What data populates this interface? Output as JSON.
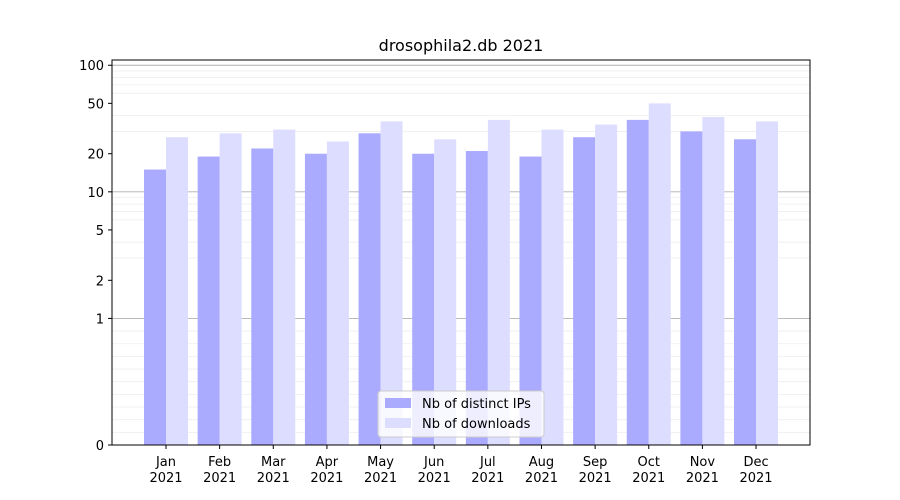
{
  "chart_data": {
    "type": "bar",
    "title": "drosophila2.db 2021",
    "xlabel": "",
    "ylabel": "",
    "y_scale": "symlog",
    "ylim": [
      0,
      110
    ],
    "y_ticks": [
      0,
      1,
      2,
      5,
      10,
      20,
      50,
      100
    ],
    "categories": [
      [
        "Jan",
        "2021"
      ],
      [
        "Feb",
        "2021"
      ],
      [
        "Mar",
        "2021"
      ],
      [
        "Apr",
        "2021"
      ],
      [
        "May",
        "2021"
      ],
      [
        "Jun",
        "2021"
      ],
      [
        "Jul",
        "2021"
      ],
      [
        "Aug",
        "2021"
      ],
      [
        "Sep",
        "2021"
      ],
      [
        "Oct",
        "2021"
      ],
      [
        "Nov",
        "2021"
      ],
      [
        "Dec",
        "2021"
      ]
    ],
    "series": [
      {
        "name": "Nb of distinct IPs",
        "color": "#aaaaff",
        "values": [
          15,
          19,
          22,
          20,
          29,
          20,
          21,
          19,
          27,
          37,
          30,
          26
        ]
      },
      {
        "name": "Nb of downloads",
        "color": "#ddddff",
        "values": [
          27,
          29,
          31,
          25,
          36,
          26,
          37,
          31,
          34,
          50,
          39,
          36
        ]
      }
    ],
    "grid": true,
    "legend_position": "bottom-center"
  }
}
